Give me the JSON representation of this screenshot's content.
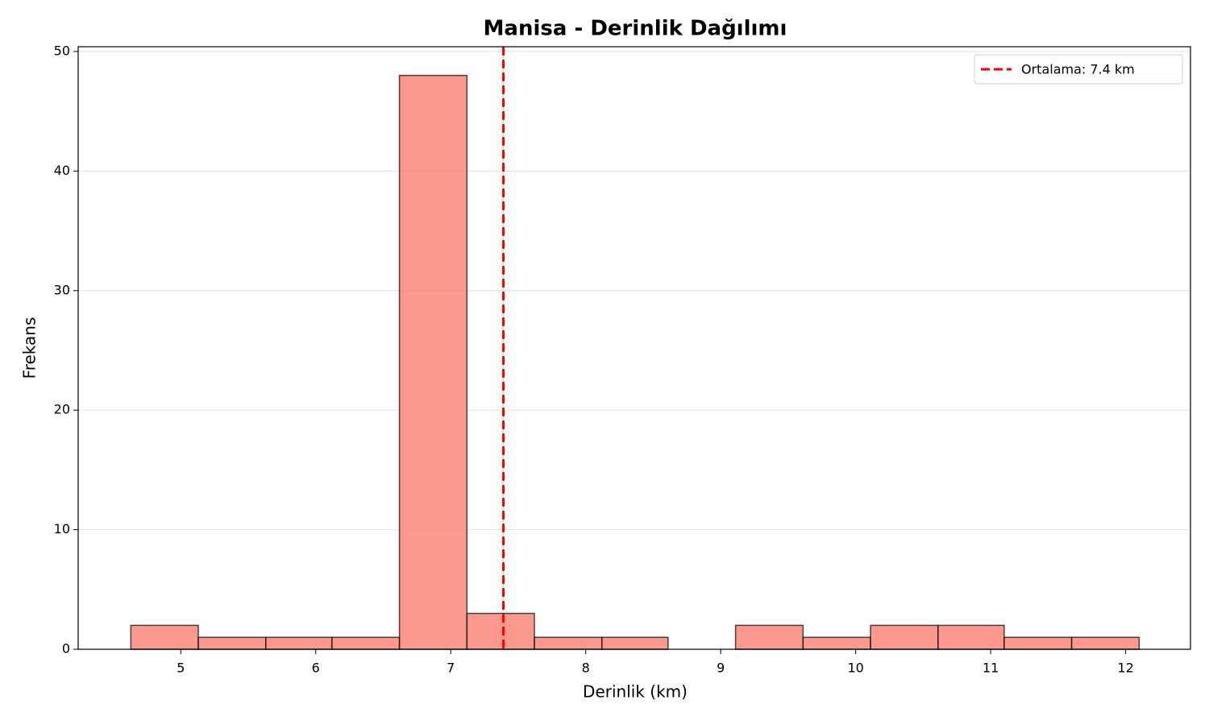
{
  "chart_data": {
    "type": "histogram",
    "title": "Manisa - Derinlik Dağılımı",
    "x_label": "Derinlik (km)",
    "y_label": "Frekans",
    "bins": [
      4.63,
      5.13,
      5.63,
      6.12,
      6.62,
      7.12,
      7.62,
      8.12,
      8.61,
      9.11,
      9.61,
      10.11,
      10.61,
      11.1,
      11.6,
      12.1
    ],
    "counts": [
      2,
      1,
      1,
      1,
      48,
      3,
      1,
      1,
      0,
      2,
      1,
      2,
      2,
      1,
      1
    ],
    "color": "#fa8072",
    "mean_line": {
      "value": 7.39,
      "label": "Ortalama: 7.4 km",
      "color": "#ff0000"
    },
    "xlim": [
      4.24,
      12.48
    ],
    "xticks": [
      5,
      6,
      7,
      8,
      9,
      10,
      11,
      12
    ],
    "ylim": [
      0,
      50.4
    ],
    "yticks": [
      0,
      10,
      20,
      30,
      40,
      50
    ],
    "grid": true,
    "legend": "upper right"
  }
}
